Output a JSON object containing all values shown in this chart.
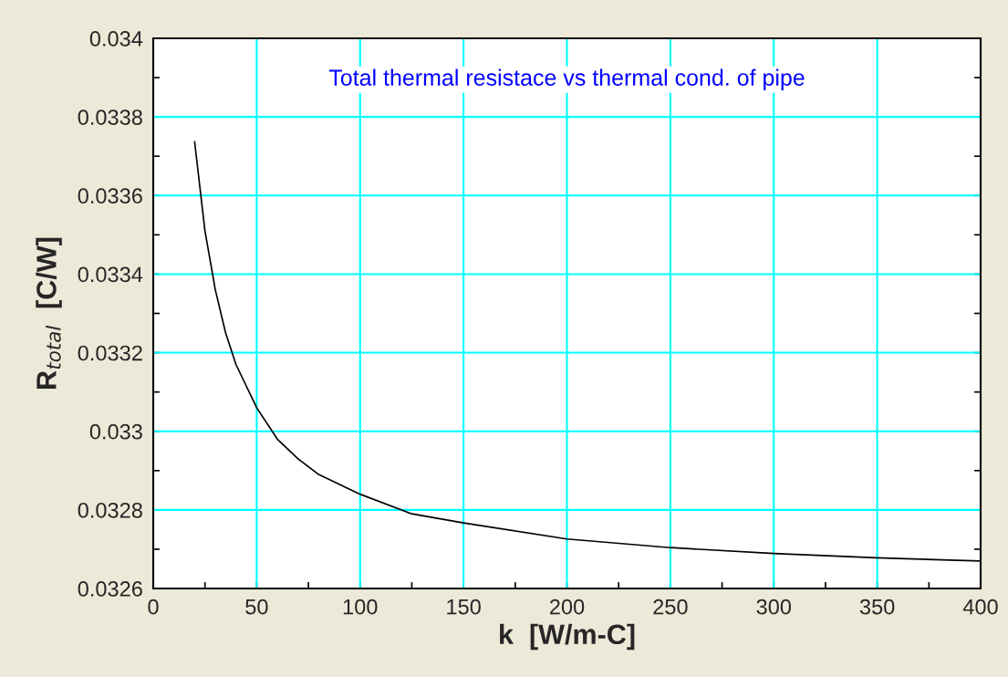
{
  "chart_data": {
    "type": "line",
    "title": "Total thermal resistace vs thermal cond. of pipe",
    "xlabel": "k  [W/m-C]",
    "ylabel": "R$_{total}$  [C/W]",
    "x": [
      20,
      25,
      30,
      35,
      40,
      50,
      60,
      70,
      80,
      100,
      125,
      150,
      200,
      250,
      300,
      350,
      400
    ],
    "series": [
      {
        "color": "#000000",
        "values": [
          0.033737,
          0.03351,
          0.03336,
          0.03325,
          0.03317,
          0.03306,
          0.03298,
          0.03293,
          0.03289,
          0.03284,
          0.03279,
          0.032767,
          0.032726,
          0.032704,
          0.032689,
          0.032678,
          0.03267
        ]
      }
    ],
    "xlim": [
      0,
      400
    ],
    "ylim": [
      0.0326,
      0.034
    ],
    "xticks": [
      0,
      {
        "value": 25,
        "label": null
      },
      50,
      {
        "value": 75,
        "label": null
      },
      100,
      {
        "value": 125,
        "label": null
      },
      150,
      {
        "value": 175,
        "label": null
      },
      200,
      {
        "value": 225,
        "label": null
      },
      250,
      {
        "value": 275,
        "label": null
      },
      300,
      {
        "value": 325,
        "label": null
      },
      350,
      {
        "value": 375,
        "label": null
      },
      400
    ],
    "yticks": [
      0.0326,
      {
        "value": 0.0327,
        "label": null
      },
      0.0328,
      {
        "value": 0.0329,
        "label": null
      },
      0.033,
      {
        "value": 0.0331,
        "label": null
      },
      0.0332,
      {
        "value": 0.0333,
        "label": null
      },
      0.0334,
      {
        "value": 0.0335,
        "label": null
      },
      0.0336,
      {
        "value": 0.0337,
        "label": null
      },
      0.0338,
      {
        "value": 0.0339,
        "label": null
      },
      0.034
    ],
    "grid": true,
    "line_style": "solid",
    "marker": "none"
  }
}
